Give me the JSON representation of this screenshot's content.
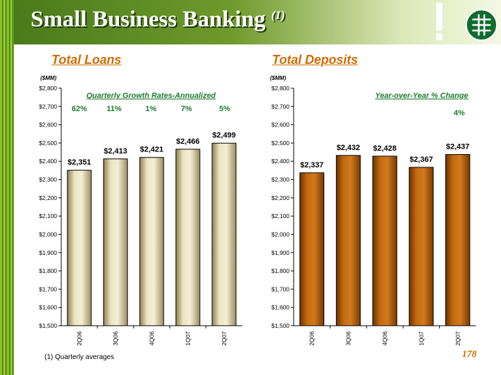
{
  "header": {
    "title": "Small Business Banking",
    "title_footnote_mark": "(1)",
    "accent_color": "#d36b00",
    "brand_green": "#4a7a1a",
    "logo_icon": "bank-logo-icon"
  },
  "footnote": "(1) Quarterly averages",
  "page_number": "178",
  "chart_data": [
    {
      "type": "bar",
      "title": "Total Loans",
      "unit_label": "($MM)",
      "annotation_title": "Quarterly Growth Rates-Annualized",
      "growth_rates": [
        "62%",
        "11%",
        "1%",
        "7%",
        "5%"
      ],
      "categories": [
        "2Q06",
        "3Q06",
        "4Q06",
        "1Q07",
        "2Q07"
      ],
      "values": [
        2351,
        2413,
        2421,
        2466,
        2499
      ],
      "data_labels": [
        "$2,351",
        "$2,413",
        "$2,421",
        "$2,466",
        "$2,499"
      ],
      "ylim": [
        1500,
        2800
      ],
      "yticks": [
        1500,
        1600,
        1700,
        1800,
        1900,
        2000,
        2100,
        2200,
        2300,
        2400,
        2500,
        2600,
        2700,
        2800
      ],
      "ytick_labels": [
        "$1,500",
        "$1,600",
        "$1,700",
        "$1,800",
        "$1,900",
        "$2,000",
        "$2,100",
        "$2,200",
        "$2,300",
        "$2,400",
        "$2,500",
        "$2,600",
        "$2,700",
        "$2,800"
      ],
      "bar_color": "#e3dbb2",
      "grid": false
    },
    {
      "type": "bar",
      "title": "Total Deposits",
      "unit_label": "($MM)",
      "annotation_title": "Year-over-Year % Change",
      "change_value": "4%",
      "categories": [
        "2Q06",
        "3Q06",
        "4Q06",
        "1Q07",
        "2Q07"
      ],
      "values": [
        2337,
        2432,
        2428,
        2367,
        2437
      ],
      "data_labels": [
        "$2,337",
        "$2,432",
        "$2,428",
        "$2,367",
        "$2,437"
      ],
      "ylim": [
        1500,
        2800
      ],
      "yticks": [
        1500,
        1600,
        1700,
        1800,
        1900,
        2000,
        2100,
        2200,
        2300,
        2400,
        2500,
        2600,
        2700,
        2800
      ],
      "ytick_labels": [
        "$1,500",
        "$1,600",
        "$1,700",
        "$1,800",
        "$1,900",
        "$2,000",
        "$2,100",
        "$2,200",
        "$2,300",
        "$2,400",
        "$2,500",
        "$2,600",
        "$2,700",
        "$2,800"
      ],
      "bar_color": "#b55a00",
      "grid": false
    }
  ]
}
